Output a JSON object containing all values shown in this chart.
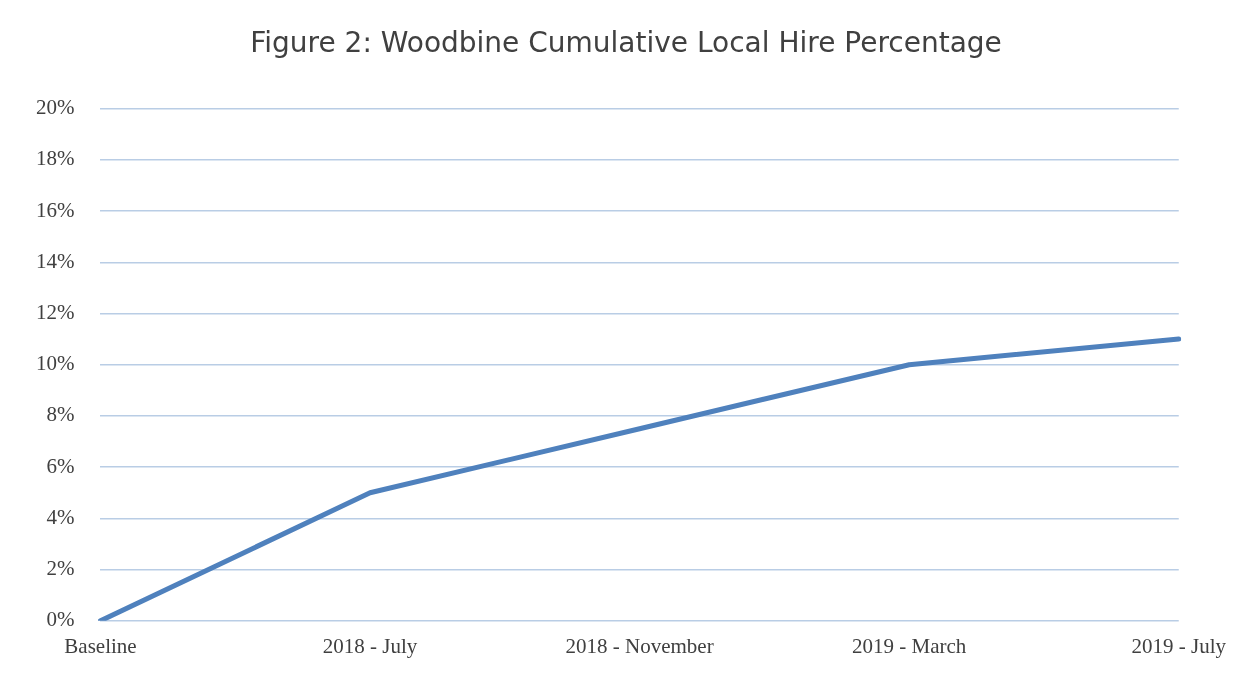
{
  "chart_data": {
    "type": "line",
    "title": "Figure 2: Woodbine Cumulative Local Hire Percentage",
    "categories": [
      "Baseline",
      "2018 - July",
      "2018 - November",
      "2019 - March",
      "2019 - July"
    ],
    "series": [
      {
        "color": "#4f81bd",
        "values": [
          0,
          5,
          7.5,
          10,
          11
        ]
      }
    ],
    "ylim": [
      0,
      20
    ],
    "yticks": [
      {
        "value": 0,
        "label": "0%"
      },
      {
        "value": 2,
        "label": "2%"
      },
      {
        "value": 4,
        "label": "4%"
      },
      {
        "value": 6,
        "label": "6%"
      },
      {
        "value": 8,
        "label": "8%"
      },
      {
        "value": 10,
        "label": "10%"
      },
      {
        "value": 12,
        "label": "12%"
      },
      {
        "value": 14,
        "label": "14%"
      },
      {
        "value": 16,
        "label": "16%"
      },
      {
        "value": 18,
        "label": "18%"
      },
      {
        "value": 20,
        "label": "20%"
      }
    ],
    "grid": "y",
    "legend": false,
    "marker": "none",
    "line_style": "solid"
  }
}
